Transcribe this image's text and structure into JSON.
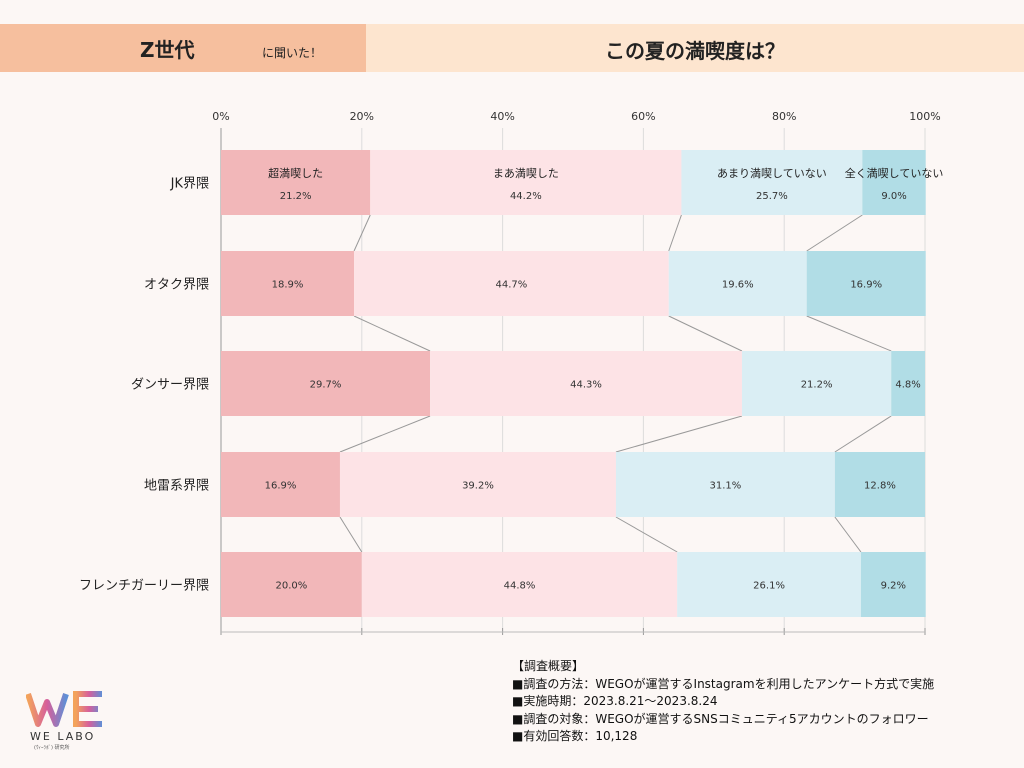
{
  "header": {
    "left_main": "Z世代",
    "left_sub": "に聞いた！",
    "title": "この夏の満喫度は？"
  },
  "colors": {
    "header_left": "#f6bf9e",
    "header_right": "#fde5cf",
    "series": [
      "#f2b7b9",
      "#fde3e6",
      "#daeef4",
      "#b1dde6"
    ]
  },
  "chart_data": {
    "type": "bar",
    "orientation": "horizontal",
    "stacked": true,
    "x_ticks": [
      "0%",
      "20%",
      "40%",
      "60%",
      "80%",
      "100%"
    ],
    "xlim": [
      0,
      100
    ],
    "categories": [
      "JK界隈",
      "オタク界隈",
      "ダンサー界隈",
      "地雷系界隈",
      "フレンチガーリー界隈"
    ],
    "series": [
      {
        "name": "超満喫した",
        "values": [
          21.2,
          18.9,
          29.7,
          16.9,
          20.0
        ],
        "labels": [
          "21.2%",
          "18.9%",
          "29.7%",
          "16.9%",
          "20.0%"
        ]
      },
      {
        "name": "まあ満喫した",
        "values": [
          44.2,
          44.7,
          44.3,
          39.2,
          44.8
        ],
        "labels": [
          "44.2%",
          "44.7%",
          "44.3%",
          "39.2%",
          "44.8%"
        ]
      },
      {
        "name": "あまり満喫していない",
        "values": [
          25.7,
          19.6,
          21.2,
          31.1,
          26.1
        ],
        "labels": [
          "25.7%",
          "19.6%",
          "21.2%",
          "31.1%",
          "26.1%"
        ]
      },
      {
        "name": "全く満喫していない",
        "values": [
          9.0,
          16.9,
          4.8,
          12.8,
          9.2
        ],
        "labels": [
          "9.0%",
          "16.9%",
          "4.8%",
          "12.8%",
          "9.2%"
        ]
      }
    ],
    "grid": true,
    "legend": "inside-first-bar"
  },
  "notes": {
    "heading": "【調査概要】",
    "lines": [
      "■調査の方法：WEGOが運営するInstagramを利用したアンケート方式で実施",
      "■実施時期：2023.8.21～2023.8.24",
      "■調査の対象：WEGOが運営するSNSコミュニティ5アカウントのフォロワー",
      "■有効回答数：10,128"
    ]
  },
  "logo": {
    "text": "WE LABO",
    "sub": "(ｳｨｰﾗﾎﾞ) 研究所"
  }
}
